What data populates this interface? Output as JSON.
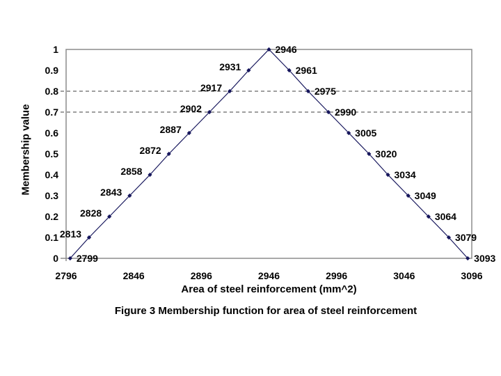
{
  "figure": {
    "caption": "Figure 3 Membership function for area of steel reinforcement"
  },
  "colors": {
    "background": "#FFFFFF",
    "series": "#16165C",
    "axis": "#8C8C8C",
    "gridline": "#3F3F3F",
    "text": "#000000"
  },
  "chart_data": {
    "type": "line",
    "title": "",
    "xlabel": "Area of steel reinforcement (mm^2)",
    "ylabel": "Membership value",
    "xlim": [
      2796,
      3096
    ],
    "ylim": [
      0,
      1
    ],
    "x_ticks": [
      "2796",
      "2846",
      "2896",
      "2946",
      "2996",
      "3046",
      "3096"
    ],
    "y_ticks": [
      "1",
      "0.9",
      "0.8",
      "0.7",
      "0.6",
      "0.5",
      "0.4",
      "0.3",
      "0.2",
      "0.1",
      "0"
    ],
    "gridlines_y": [
      0.8,
      0.7
    ],
    "grid": "dashed horizontal lines at 0.7 and 0.8 only",
    "legend": "none",
    "marker": "diamond",
    "series": [
      {
        "name": "membership",
        "color": "#16165C",
        "points": [
          {
            "x": 2799,
            "y": 0,
            "label": "2799",
            "label_side": "right"
          },
          {
            "x": 2813,
            "y": 0.1,
            "label": "2813",
            "label_side": "left"
          },
          {
            "x": 2828,
            "y": 0.2,
            "label": "2828",
            "label_side": "left"
          },
          {
            "x": 2843,
            "y": 0.3,
            "label": "2843",
            "label_side": "left"
          },
          {
            "x": 2858,
            "y": 0.4,
            "label": "2858",
            "label_side": "left"
          },
          {
            "x": 2872,
            "y": 0.5,
            "label": "2872",
            "label_side": "left"
          },
          {
            "x": 2887,
            "y": 0.6,
            "label": "2887",
            "label_side": "left"
          },
          {
            "x": 2902,
            "y": 0.7,
            "label": "2902",
            "label_side": "left"
          },
          {
            "x": 2917,
            "y": 0.8,
            "label": "2917",
            "label_side": "left"
          },
          {
            "x": 2931,
            "y": 0.9,
            "label": "2931",
            "label_side": "left"
          },
          {
            "x": 2946,
            "y": 1,
            "label": "2946",
            "label_side": "right"
          },
          {
            "x": 2961,
            "y": 0.9,
            "label": "2961",
            "label_side": "right"
          },
          {
            "x": 2975,
            "y": 0.8,
            "label": "2975",
            "label_side": "right"
          },
          {
            "x": 2990,
            "y": 0.7,
            "label": "2990",
            "label_side": "right"
          },
          {
            "x": 3005,
            "y": 0.6,
            "label": "3005",
            "label_side": "right"
          },
          {
            "x": 3020,
            "y": 0.5,
            "label": "3020",
            "label_side": "right"
          },
          {
            "x": 3034,
            "y": 0.4,
            "label": "3034",
            "label_side": "right"
          },
          {
            "x": 3049,
            "y": 0.3,
            "label": "3049",
            "label_side": "right"
          },
          {
            "x": 3064,
            "y": 0.2,
            "label": "3064",
            "label_side": "right"
          },
          {
            "x": 3079,
            "y": 0.1,
            "label": "3079",
            "label_side": "right"
          },
          {
            "x": 3093,
            "y": 0,
            "label": "3093",
            "label_side": "right"
          }
        ]
      }
    ]
  }
}
